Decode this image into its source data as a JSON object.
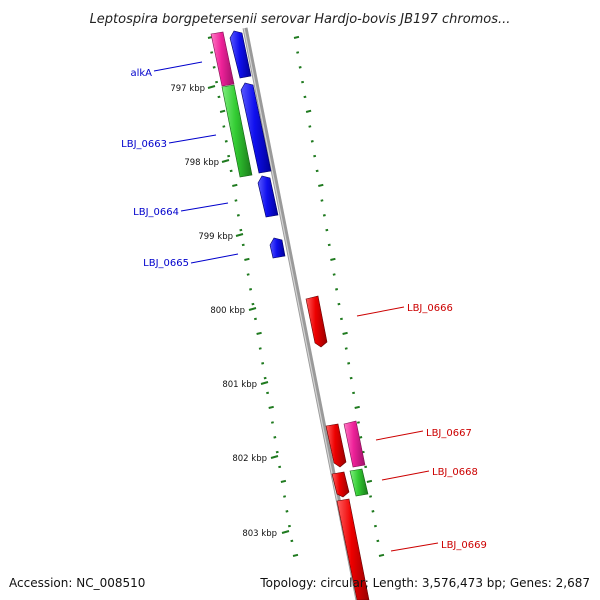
{
  "title": "Leptospira borgpetersenii serovar Hardjo-bovis JB197 chromos...",
  "accession": "Accession: NC_008510",
  "summary": "Topology: circular; Length: 3,576,473 bp; Genes: 2,687",
  "kbp_labels": [
    "797 kbp",
    "798 kbp",
    "799 kbp",
    "800 kbp",
    "801 kbp",
    "802 kbp",
    "803 kbp"
  ],
  "gene_labels_left": [
    "alkA",
    "LBJ_0663",
    "LBJ_0664",
    "LBJ_0665"
  ],
  "gene_labels_right": [
    "LBJ_0666",
    "LBJ_0667",
    "LBJ_0668",
    "LBJ_0669"
  ],
  "colors": {
    "forward_strand": "#0000ee",
    "reverse_strand": "#ee0000",
    "rrna": "#ee2299",
    "trna": "#22cc33",
    "ticks": "#1f7a1f",
    "backbone": "#888888"
  }
}
